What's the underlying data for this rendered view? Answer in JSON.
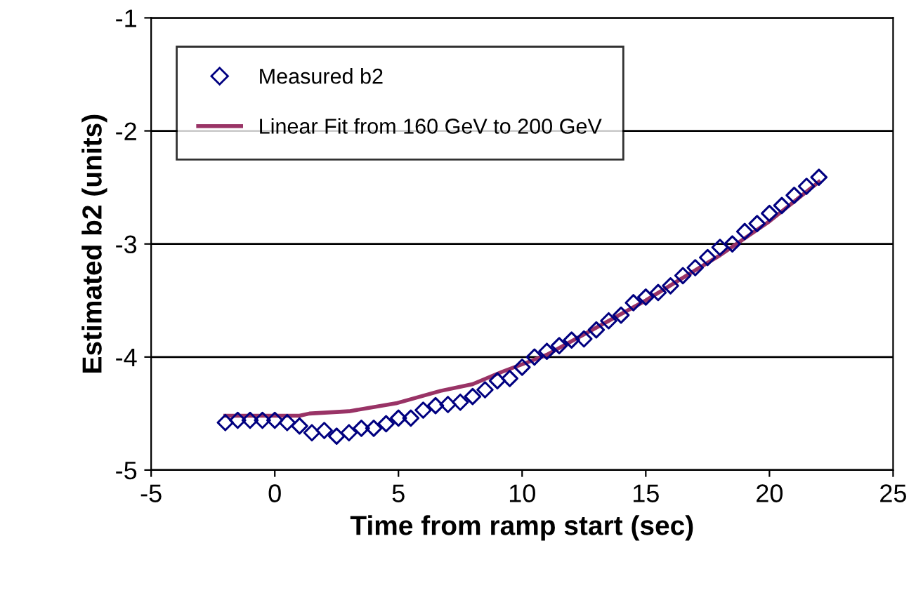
{
  "chart_data": {
    "type": "scatter",
    "xlabel": "Time from ramp start (sec)",
    "ylabel": "Estimated b2 (units)",
    "xlim": [
      -5,
      25
    ],
    "xticks": [
      -5,
      0,
      5,
      10,
      15,
      20,
      25
    ],
    "ylim": [
      -5,
      -1
    ],
    "yticks": [
      -5,
      -4,
      -3,
      -2,
      -1
    ],
    "grid": "y",
    "legend": "top left",
    "series": [
      {
        "name": "Measured b2",
        "marker": "diamond",
        "color": "#000080",
        "x": [
          -2,
          -1.5,
          -1,
          -0.5,
          0,
          0.5,
          1,
          1.5,
          2,
          2.5,
          3,
          3.5,
          4,
          4.5,
          5,
          5.5,
          6,
          6.5,
          7,
          7.5,
          8,
          8.5,
          9,
          9.5,
          10,
          10.5,
          11,
          11.5,
          12,
          12.5,
          13,
          13.5,
          14,
          14.5,
          15,
          15.5,
          16,
          16.5,
          17,
          17.5,
          18,
          18.5,
          19,
          19.5,
          20,
          20.5,
          21,
          21.5,
          22
        ],
        "values": [
          -4.58,
          -4.56,
          -4.56,
          -4.56,
          -4.56,
          -4.58,
          -4.61,
          -4.67,
          -4.65,
          -4.7,
          -4.67,
          -4.63,
          -4.63,
          -4.59,
          -4.54,
          -4.54,
          -4.47,
          -4.43,
          -4.42,
          -4.4,
          -4.35,
          -4.29,
          -4.21,
          -4.19,
          -4.09,
          -4.0,
          -3.95,
          -3.9,
          -3.85,
          -3.84,
          -3.76,
          -3.68,
          -3.63,
          -3.52,
          -3.47,
          -3.43,
          -3.37,
          -3.28,
          -3.21,
          -3.12,
          -3.03,
          -3.0,
          -2.89,
          -2.82,
          -2.73,
          -2.66,
          -2.57,
          -2.49,
          -2.41
        ]
      },
      {
        "name": "Linear Fit from 160 GeV to 200 GeV",
        "type": "line",
        "marker": "none",
        "line_style": "solid",
        "color": "#993366",
        "x": [
          -2,
          1,
          1.4,
          3,
          4.9,
          6.7,
          8,
          9.2,
          10.3,
          11,
          15,
          18,
          20,
          22
        ],
        "values": [
          -4.52,
          -4.52,
          -4.5,
          -4.48,
          -4.41,
          -4.3,
          -4.24,
          -4.13,
          -4.04,
          -3.98,
          -3.5,
          -3.1,
          -2.8,
          -2.45
        ]
      }
    ]
  }
}
